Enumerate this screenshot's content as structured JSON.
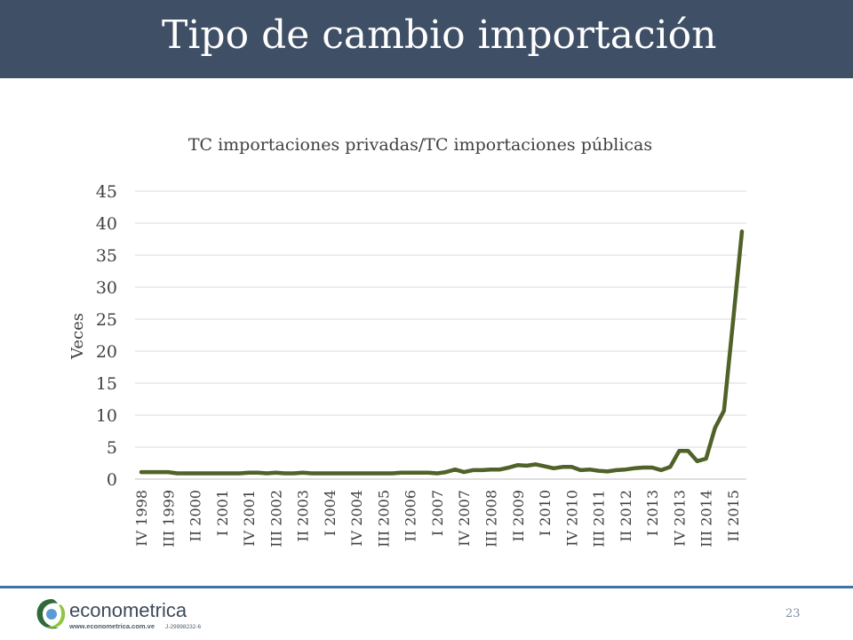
{
  "slide": {
    "title": "Tipo de cambio importación",
    "page_number": "23"
  },
  "logo": {
    "name": "econometrica",
    "url": "www.econometrica.com.ve",
    "rif": "J-29998232-6"
  },
  "colors": {
    "title_bar": "#3e4f66",
    "series_line": "#4f6228",
    "gridline": "#d9d9d9",
    "bottom_rule": "#3a74a8"
  },
  "chart_data": {
    "type": "line",
    "title": "TC importaciones privadas/TC importaciones públicas",
    "ylabel": "Veces",
    "xlabel": "",
    "ylim": [
      0,
      45
    ],
    "y_ticks": [
      0,
      5,
      10,
      15,
      20,
      25,
      30,
      35,
      40,
      45
    ],
    "grid": true,
    "legend": "none",
    "x_tick_labels": [
      "IV 1998",
      "III 1999",
      "II 2000",
      "I 2001",
      "IV 2001",
      "III 2002",
      "II 2003",
      "I 2004",
      "IV 2004",
      "III 2005",
      "II 2006",
      "I 2007",
      "IV 2007",
      "III 2008",
      "II 2009",
      "I 2010",
      "IV 2010",
      "III 2011",
      "II 2012",
      "I 2013",
      "IV 2013",
      "III 2014",
      "II 2015"
    ],
    "series": [
      {
        "name": "",
        "values": [
          1.1,
          1.1,
          1.1,
          1.1,
          0.9,
          0.9,
          0.9,
          0.9,
          0.9,
          0.9,
          0.9,
          0.9,
          1.0,
          1.0,
          0.9,
          1.0,
          0.9,
          0.9,
          1.0,
          0.9,
          0.9,
          0.9,
          0.9,
          0.9,
          0.9,
          0.9,
          0.9,
          0.9,
          0.9,
          1.0,
          1.0,
          1.0,
          1.0,
          0.9,
          1.1,
          1.5,
          1.1,
          1.4,
          1.4,
          1.5,
          1.5,
          1.8,
          2.2,
          2.1,
          2.3,
          2.0,
          1.7,
          1.9,
          1.9,
          1.4,
          1.5,
          1.3,
          1.2,
          1.4,
          1.5,
          1.7,
          1.8,
          1.8,
          1.4,
          1.9,
          4.4,
          4.4,
          2.8,
          3.2,
          8.0,
          10.7,
          24.5,
          38.7
        ]
      }
    ]
  }
}
